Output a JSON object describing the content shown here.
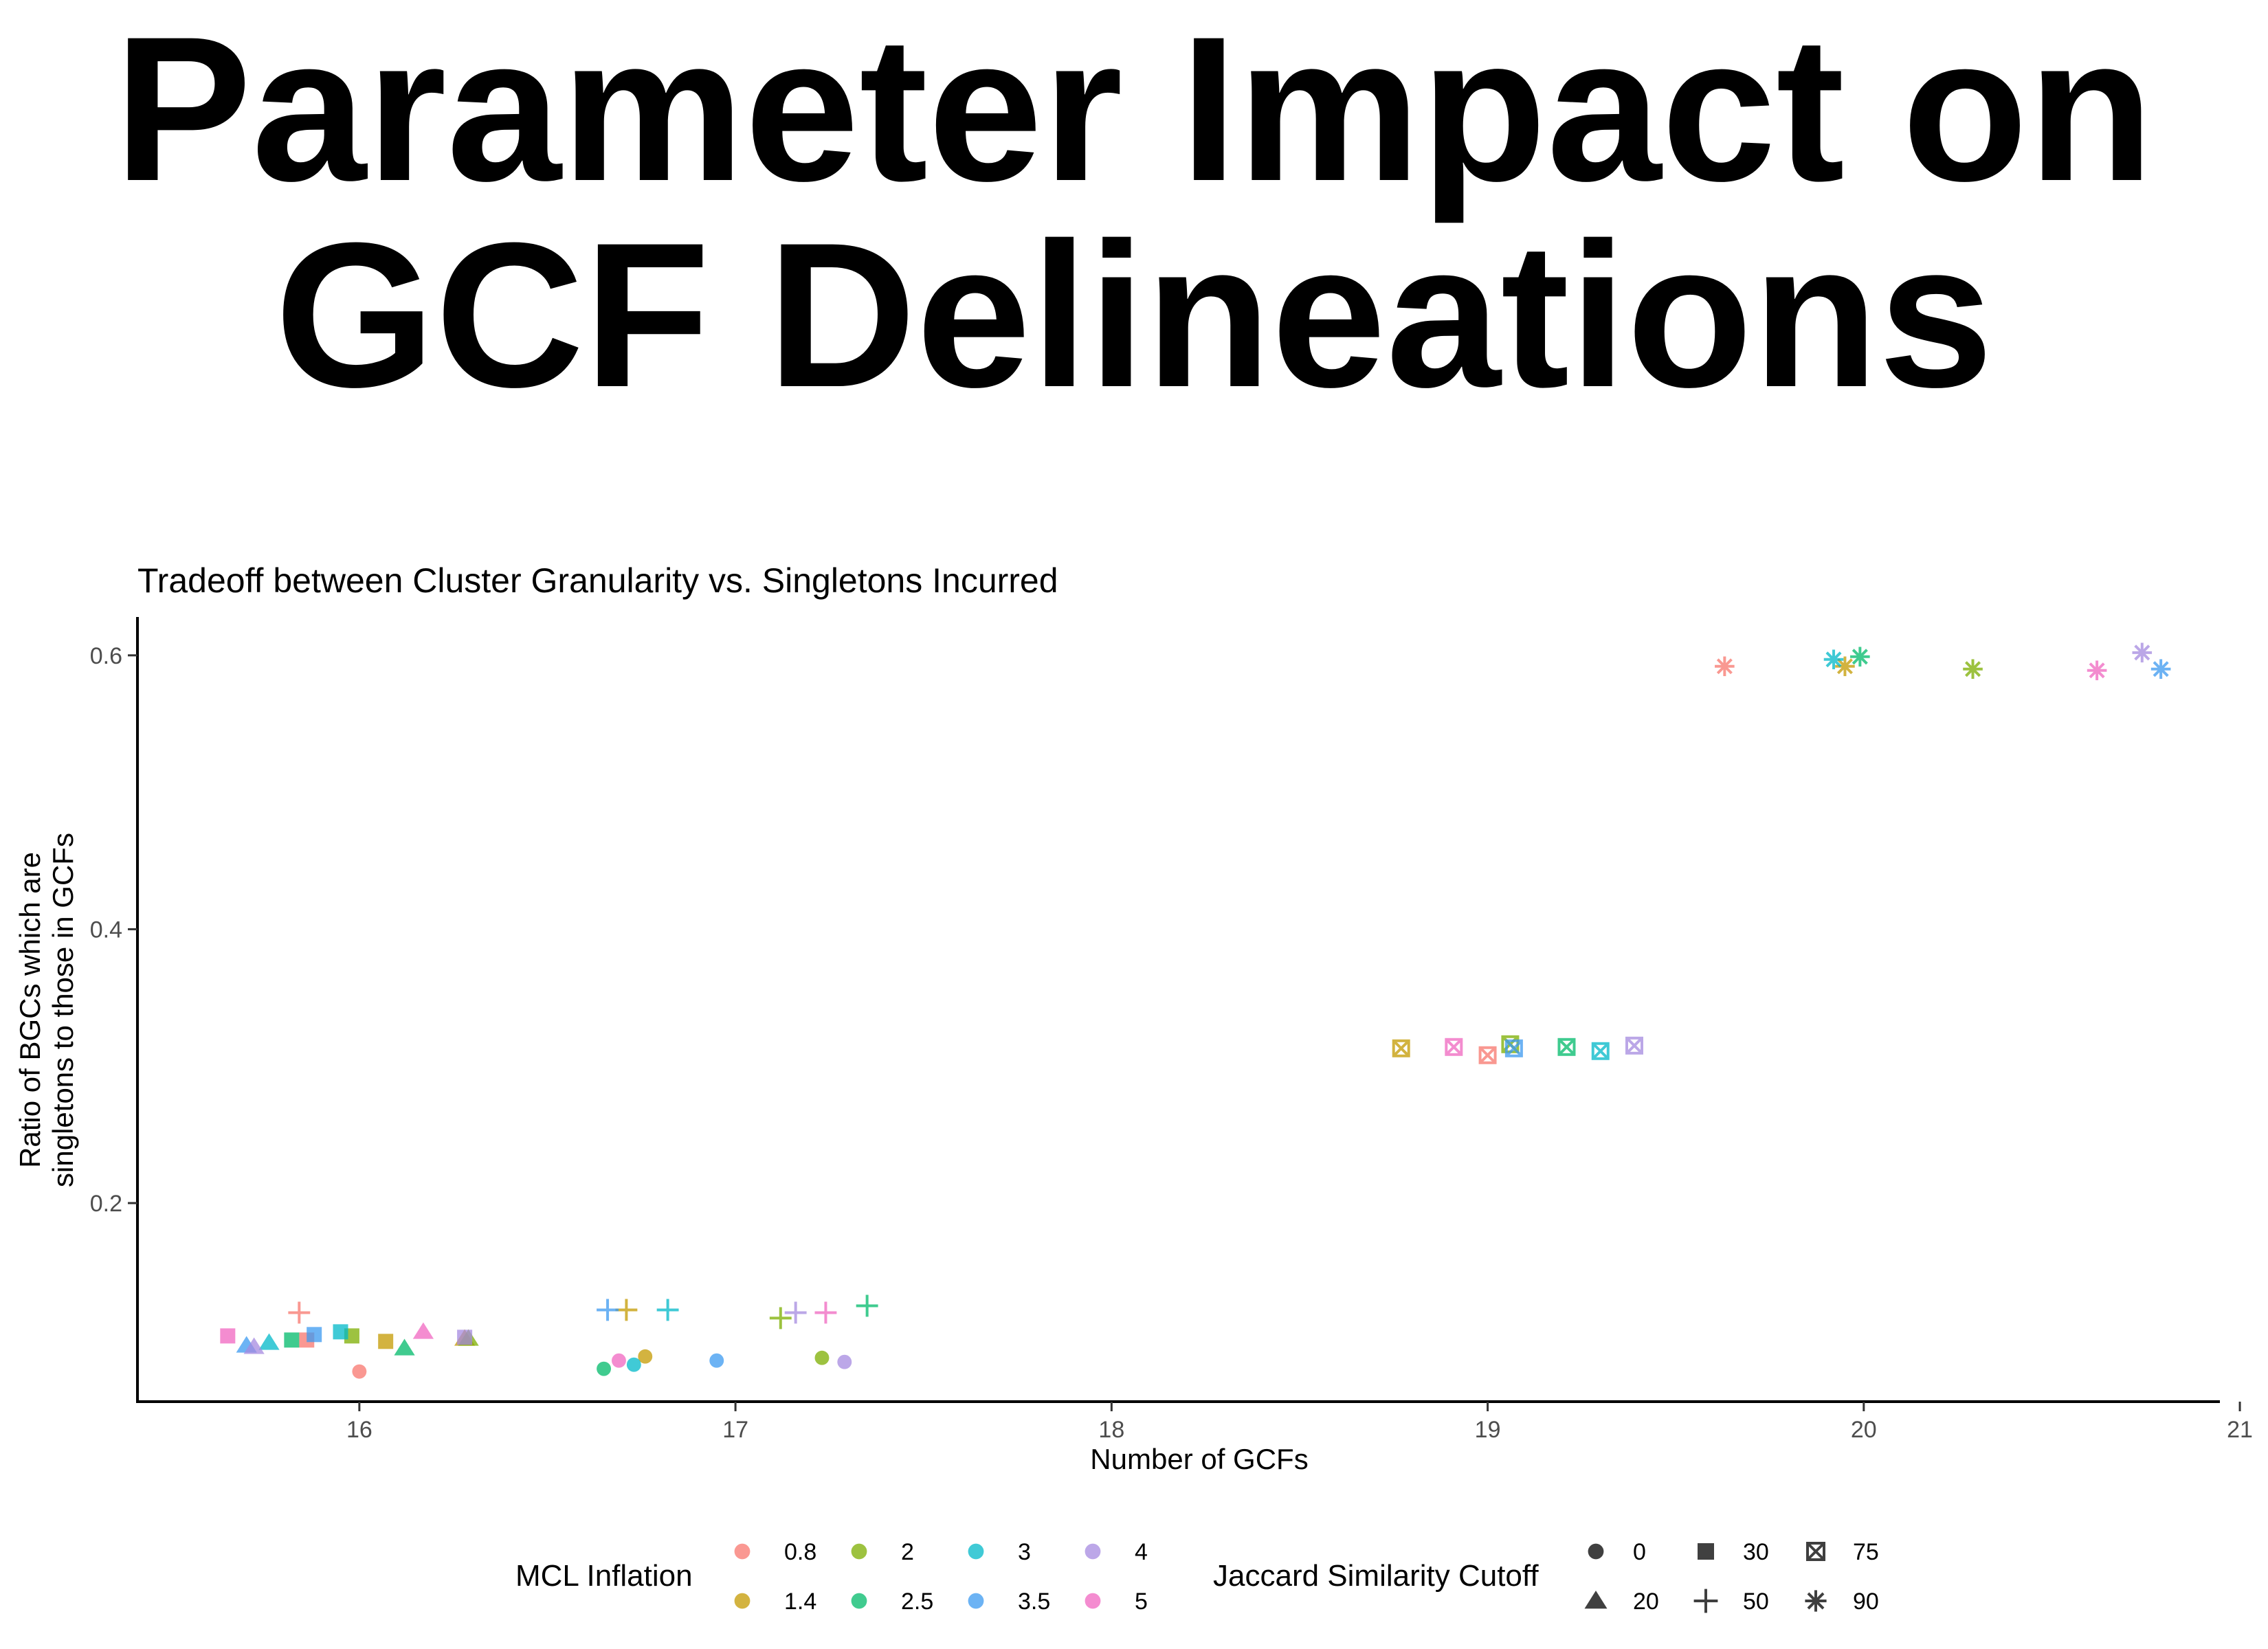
{
  "page_title_lines": [
    "Parameter Impact on",
    "GCF Delineations"
  ],
  "chart_data": {
    "type": "scatter",
    "title": "Tradeoff between Cluster Granularity vs. Singletons Incurred",
    "xlabel": "Number of GCFs",
    "ylabel_lines": [
      "Ratio of BGCs which are",
      "singletons to those in GCFs"
    ],
    "xlim": [
      15.41,
      21.02
    ],
    "ylim": [
      0.055,
      0.628
    ],
    "x_ticks": [
      16,
      17,
      18,
      19,
      20,
      21
    ],
    "y_ticks": [
      0.2,
      0.4,
      0.6
    ],
    "y_tick_labels": [
      "0.2",
      "0.4",
      "0.6"
    ],
    "grid": false,
    "legend_position": "bottom",
    "color_legend": {
      "title": "MCL Inflation",
      "entries": [
        {
          "label": "0.8",
          "color": "#F8766D"
        },
        {
          "label": "1.4",
          "color": "#C49A00"
        },
        {
          "label": "2",
          "color": "#7CAE00"
        },
        {
          "label": "2.5",
          "color": "#00BA6A"
        },
        {
          "label": "3",
          "color": "#00B8C8"
        },
        {
          "label": "3.5",
          "color": "#3B99F0"
        },
        {
          "label": "4",
          "color": "#A58AE0"
        },
        {
          "label": "5",
          "color": "#F066C0"
        }
      ]
    },
    "shape_legend": {
      "title": "Jaccard Similarity Cutoff",
      "entries": [
        {
          "label": "0",
          "shape": "circle"
        },
        {
          "label": "20",
          "shape": "triangle"
        },
        {
          "label": "30",
          "shape": "square"
        },
        {
          "label": "50",
          "shape": "plus"
        },
        {
          "label": "75",
          "shape": "boxx"
        },
        {
          "label": "90",
          "shape": "asterisk"
        }
      ]
    },
    "points": [
      {
        "x": 16.0,
        "y": 0.077,
        "inflation": "0.8",
        "cutoff": "0"
      },
      {
        "x": 16.76,
        "y": 0.088,
        "inflation": "1.4",
        "cutoff": "0"
      },
      {
        "x": 17.23,
        "y": 0.087,
        "inflation": "2",
        "cutoff": "0"
      },
      {
        "x": 16.65,
        "y": 0.079,
        "inflation": "2.5",
        "cutoff": "0"
      },
      {
        "x": 16.73,
        "y": 0.082,
        "inflation": "3",
        "cutoff": "0"
      },
      {
        "x": 16.95,
        "y": 0.085,
        "inflation": "3.5",
        "cutoff": "0"
      },
      {
        "x": 17.29,
        "y": 0.084,
        "inflation": "4",
        "cutoff": "0"
      },
      {
        "x": 16.69,
        "y": 0.085,
        "inflation": "5",
        "cutoff": "0"
      },
      {
        "x": 16.17,
        "y": 0.106,
        "inflation": "5",
        "cutoff": "20"
      },
      {
        "x": 16.28,
        "y": 0.101,
        "inflation": "1.4",
        "cutoff": "20"
      },
      {
        "x": 16.12,
        "y": 0.094,
        "inflation": "2.5",
        "cutoff": "20"
      },
      {
        "x": 15.76,
        "y": 0.098,
        "inflation": "3",
        "cutoff": "20"
      },
      {
        "x": 15.7,
        "y": 0.096,
        "inflation": "3.5",
        "cutoff": "20"
      },
      {
        "x": 15.72,
        "y": 0.095,
        "inflation": "4",
        "cutoff": "20"
      },
      {
        "x": 16.29,
        "y": 0.101,
        "inflation": "2",
        "cutoff": "20"
      },
      {
        "x": 15.65,
        "y": 0.103,
        "inflation": "5",
        "cutoff": "30"
      },
      {
        "x": 15.86,
        "y": 0.1,
        "inflation": "0.8",
        "cutoff": "30"
      },
      {
        "x": 16.07,
        "y": 0.099,
        "inflation": "1.4",
        "cutoff": "30"
      },
      {
        "x": 15.98,
        "y": 0.103,
        "inflation": "2",
        "cutoff": "30"
      },
      {
        "x": 15.82,
        "y": 0.1,
        "inflation": "2.5",
        "cutoff": "30"
      },
      {
        "x": 15.95,
        "y": 0.106,
        "inflation": "3",
        "cutoff": "30"
      },
      {
        "x": 15.88,
        "y": 0.104,
        "inflation": "3.5",
        "cutoff": "30"
      },
      {
        "x": 16.28,
        "y": 0.102,
        "inflation": "4",
        "cutoff": "30"
      },
      {
        "x": 15.84,
        "y": 0.12,
        "inflation": "0.8",
        "cutoff": "50"
      },
      {
        "x": 16.71,
        "y": 0.122,
        "inflation": "1.4",
        "cutoff": "50"
      },
      {
        "x": 17.12,
        "y": 0.116,
        "inflation": "2",
        "cutoff": "50"
      },
      {
        "x": 17.35,
        "y": 0.125,
        "inflation": "2.5",
        "cutoff": "50"
      },
      {
        "x": 16.82,
        "y": 0.122,
        "inflation": "3",
        "cutoff": "50"
      },
      {
        "x": 16.66,
        "y": 0.122,
        "inflation": "3.5",
        "cutoff": "50"
      },
      {
        "x": 17.16,
        "y": 0.12,
        "inflation": "4",
        "cutoff": "50"
      },
      {
        "x": 17.24,
        "y": 0.12,
        "inflation": "5",
        "cutoff": "50"
      },
      {
        "x": 19.0,
        "y": 0.308,
        "inflation": "0.8",
        "cutoff": "75"
      },
      {
        "x": 18.77,
        "y": 0.313,
        "inflation": "1.4",
        "cutoff": "75"
      },
      {
        "x": 19.06,
        "y": 0.316,
        "inflation": "2",
        "cutoff": "75"
      },
      {
        "x": 19.21,
        "y": 0.314,
        "inflation": "2.5",
        "cutoff": "75"
      },
      {
        "x": 19.3,
        "y": 0.311,
        "inflation": "3",
        "cutoff": "75"
      },
      {
        "x": 19.07,
        "y": 0.313,
        "inflation": "3.5",
        "cutoff": "75"
      },
      {
        "x": 19.39,
        "y": 0.315,
        "inflation": "4",
        "cutoff": "75"
      },
      {
        "x": 18.91,
        "y": 0.314,
        "inflation": "5",
        "cutoff": "75"
      },
      {
        "x": 19.63,
        "y": 0.592,
        "inflation": "0.8",
        "cutoff": "90"
      },
      {
        "x": 19.95,
        "y": 0.592,
        "inflation": "1.4",
        "cutoff": "90"
      },
      {
        "x": 20.29,
        "y": 0.59,
        "inflation": "2",
        "cutoff": "90"
      },
      {
        "x": 19.99,
        "y": 0.599,
        "inflation": "2.5",
        "cutoff": "90"
      },
      {
        "x": 19.92,
        "y": 0.597,
        "inflation": "3",
        "cutoff": "90"
      },
      {
        "x": 20.79,
        "y": 0.59,
        "inflation": "3.5",
        "cutoff": "90"
      },
      {
        "x": 20.74,
        "y": 0.602,
        "inflation": "4",
        "cutoff": "90"
      },
      {
        "x": 20.62,
        "y": 0.589,
        "inflation": "5",
        "cutoff": "90"
      }
    ]
  }
}
